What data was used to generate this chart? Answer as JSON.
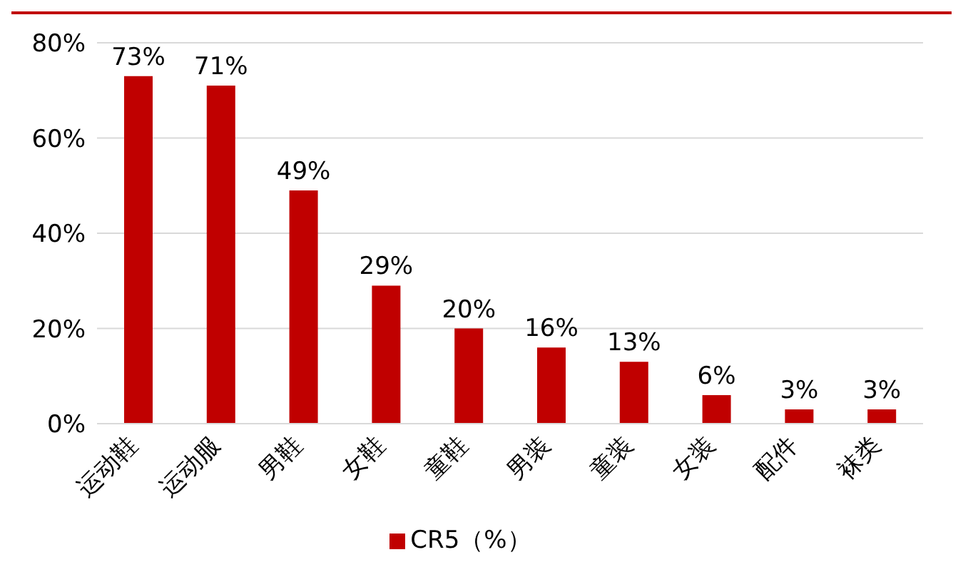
{
  "chart_data": {
    "type": "bar",
    "categories": [
      "运动鞋",
      "运动服",
      "男鞋",
      "女鞋",
      "童鞋",
      "男装",
      "童装",
      "女装",
      "配件",
      "袜类"
    ],
    "series": [
      {
        "name": "CR5（%）",
        "color": "#c00000",
        "values": [
          73,
          71,
          49,
          29,
          20,
          16,
          13,
          6,
          3,
          3
        ],
        "value_labels": [
          "73%",
          "71%",
          "49%",
          "29%",
          "20%",
          "16%",
          "13%",
          "6%",
          "3%",
          "3%"
        ]
      }
    ],
    "ylim": [
      0,
      80
    ],
    "yticks": [
      {
        "value": 0,
        "label": "0%"
      },
      {
        "value": 20,
        "label": "20%"
      },
      {
        "value": 40,
        "label": "40%"
      },
      {
        "value": 60,
        "label": "60%"
      },
      {
        "value": 80,
        "label": "80%"
      }
    ],
    "grid": "y",
    "legend": "bottom"
  }
}
